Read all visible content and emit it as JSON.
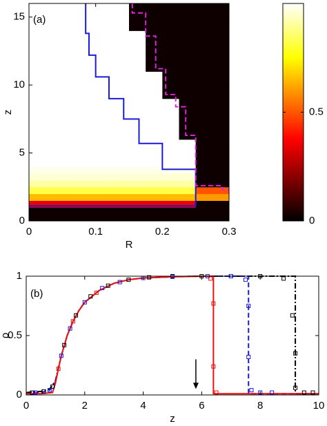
{
  "chart_data": [
    {
      "type": "heatmap",
      "annotation": "(a)",
      "xlabel": "R",
      "ylabel": "z",
      "xlim": [
        0,
        0.3
      ],
      "xticks": [
        0,
        0.1,
        0.2,
        0.3
      ],
      "ylim": [
        0,
        16
      ],
      "yticks": [
        0,
        5,
        10,
        15
      ],
      "x_edges": [
        0,
        0.05,
        0.1,
        0.125,
        0.15,
        0.175,
        0.2,
        0.225,
        0.25,
        0.3
      ],
      "y_edges": [
        0,
        1,
        1.5,
        2,
        2.5,
        3,
        3.5,
        4,
        5,
        6,
        7,
        8,
        9,
        10,
        11,
        12,
        13,
        14,
        15,
        16
      ],
      "colormap": "hot",
      "clim": [
        0,
        1
      ],
      "colorbar_ticks": [
        0,
        0.5
      ],
      "values": [
        [
          0.02,
          0.02,
          0.02,
          0.02,
          0.02,
          0.02,
          0.02,
          0.02,
          0.02
        ],
        [
          0.35,
          0.35,
          0.35,
          0.35,
          0.35,
          0.35,
          0.35,
          0.35,
          0.02
        ],
        [
          0.65,
          0.65,
          0.65,
          0.65,
          0.65,
          0.65,
          0.65,
          0.65,
          0.6
        ],
        [
          0.82,
          0.82,
          0.82,
          0.82,
          0.82,
          0.82,
          0.82,
          0.82,
          0.5
        ],
        [
          0.91,
          0.91,
          0.91,
          0.91,
          0.91,
          0.91,
          0.91,
          0.91,
          0.02
        ],
        [
          0.96,
          0.96,
          0.96,
          0.96,
          0.96,
          0.96,
          0.96,
          0.96,
          0.02
        ],
        [
          0.98,
          0.98,
          0.98,
          0.98,
          0.98,
          0.98,
          0.98,
          0.98,
          0.02
        ],
        [
          1,
          1,
          1,
          1,
          1,
          1,
          1,
          1,
          0.02
        ],
        [
          1,
          1,
          1,
          1,
          1,
          1,
          1,
          1,
          0.02
        ],
        [
          1,
          1,
          1,
          1,
          1,
          1,
          1,
          0.02,
          0.02
        ],
        [
          1,
          1,
          1,
          1,
          1,
          1,
          1,
          0.02,
          0.02
        ],
        [
          1,
          1,
          1,
          1,
          1,
          1,
          1,
          0.02,
          0.02
        ],
        [
          1,
          1,
          1,
          1,
          1,
          1,
          0.02,
          0.02,
          0.02
        ],
        [
          1,
          1,
          1,
          1,
          1,
          1,
          0.02,
          0.02,
          0.02
        ],
        [
          1,
          1,
          1,
          1,
          1,
          0.02,
          0.02,
          0.02,
          0.02
        ],
        [
          1,
          1,
          1,
          1,
          1,
          0.02,
          0.02,
          0.02,
          0.02
        ],
        [
          1,
          1,
          1,
          1,
          1,
          0.02,
          0.02,
          0.02,
          0.02
        ],
        [
          1,
          1,
          1,
          1,
          0.02,
          0.02,
          0.02,
          0.02,
          0.02
        ],
        [
          1,
          1,
          1,
          1,
          0.02,
          0.02,
          0.02,
          0.02,
          0.02
        ]
      ],
      "lines": [
        {
          "color": "#1a1adb",
          "dash": "solid",
          "x": [
            0,
            0.25,
            0.25,
            0.2,
            0.2,
            0.165,
            0.165,
            0.142,
            0.142,
            0.12,
            0.12,
            0.1,
            0.1,
            0.09,
            0.09,
            0.085,
            0.085
          ],
          "y": [
            1.1,
            1.1,
            3.8,
            3.8,
            5.7,
            5.7,
            7.5,
            7.5,
            9.0,
            9.0,
            10.6,
            10.6,
            12.2,
            12.2,
            13.8,
            13.8,
            16
          ]
        },
        {
          "color": "#e020e0",
          "dash": "dashed",
          "x": [
            0.155,
            0.155,
            0.175,
            0.175,
            0.19,
            0.19,
            0.205,
            0.205,
            0.22,
            0.22,
            0.235,
            0.235,
            0.25,
            0.25,
            0.29,
            0.29,
            0.3
          ],
          "y": [
            16,
            15.3,
            15.3,
            13.6,
            13.6,
            11.2,
            11.2,
            9.3,
            9.3,
            8.4,
            8.4,
            6.3,
            6.3,
            2.6,
            2.6,
            2.3,
            2.3
          ]
        }
      ]
    },
    {
      "type": "line",
      "annotation": "(b)",
      "xlabel": "z",
      "ylabel": "ρ",
      "xlim": [
        0,
        10
      ],
      "xticks": [
        0,
        2,
        4,
        6,
        8,
        10
      ],
      "ylim": [
        0,
        1
      ],
      "yticks": [
        0,
        0.5,
        1
      ],
      "arrows": [
        {
          "x": 5.8,
          "y_from": 0.3,
          "y_to": 0.05
        }
      ],
      "series": [
        {
          "color": "#000000",
          "dash": "dashdot",
          "kind": "line",
          "x": [
            0,
            0.5,
            0.8,
            1.0,
            1.1,
            1.2,
            1.4,
            1.6,
            1.8,
            2,
            2.5,
            3,
            3.5,
            4,
            5,
            6,
            7,
            8,
            9.2,
            9.2,
            10
          ],
          "values": [
            0.02,
            0.03,
            0.05,
            0.12,
            0.23,
            0.33,
            0.5,
            0.62,
            0.71,
            0.78,
            0.88,
            0.94,
            0.97,
            0.985,
            0.995,
            1,
            1,
            1,
            1,
            0.01,
            0.01
          ]
        },
        {
          "color": "#1a1adb",
          "dash": "dashed",
          "kind": "line",
          "x": [
            0,
            0.5,
            0.8,
            1.0,
            1.1,
            1.2,
            1.4,
            1.6,
            1.8,
            2,
            2.5,
            3,
            3.5,
            4,
            5,
            6,
            7.6,
            7.6,
            8,
            10
          ],
          "values": [
            0.01,
            0.02,
            0.04,
            0.11,
            0.22,
            0.33,
            0.5,
            0.62,
            0.71,
            0.78,
            0.88,
            0.94,
            0.97,
            0.985,
            0.995,
            1,
            1,
            0.01,
            0.01,
            0.01
          ]
        },
        {
          "color": "#ee1111",
          "dash": "solid",
          "kind": "line",
          "x": [
            0,
            0.5,
            0.9,
            1.0,
            1.1,
            1.2,
            1.4,
            1.6,
            1.8,
            2,
            2.5,
            3,
            3.5,
            4,
            5,
            6,
            6.4,
            6.4,
            7,
            8,
            10
          ],
          "values": [
            0.01,
            0.01,
            0.02,
            0.1,
            0.22,
            0.33,
            0.5,
            0.62,
            0.71,
            0.78,
            0.88,
            0.94,
            0.97,
            0.985,
            0.995,
            1,
            1,
            0.01,
            0.01,
            0.01,
            0.01
          ]
        },
        {
          "color": "#000000",
          "kind": "markers",
          "x": [
            0.2,
            0.6,
            0.9,
            1.3,
            1.7,
            2.2,
            2.8,
            3.5,
            4.2,
            5,
            6,
            7,
            8,
            8.8,
            9.1,
            9.2,
            9.2,
            9.5,
            9.8
          ],
          "values": [
            0.02,
            0.03,
            0.07,
            0.42,
            0.67,
            0.83,
            0.92,
            0.97,
            0.99,
            1,
            1,
            1,
            1,
            0.98,
            0.67,
            0.35,
            0.06,
            0.02,
            0.02
          ]
        },
        {
          "color": "#1a1adb",
          "kind": "markers",
          "x": [
            0.3,
            0.8,
            1.2,
            1.5,
            2,
            2.6,
            3.2,
            4,
            5,
            6.2,
            7,
            7.5,
            7.6,
            7.6,
            7.7,
            8,
            8.4
          ],
          "values": [
            0.02,
            0.04,
            0.33,
            0.56,
            0.78,
            0.9,
            0.95,
            0.985,
            0.995,
            1,
            1,
            0.97,
            0.75,
            0.32,
            0.04,
            0.02,
            0.02
          ]
        },
        {
          "color": "#ee1111",
          "kind": "markers",
          "x": [
            1.1,
            1.6,
            2.4,
            6.3,
            6.4,
            6.4,
            6.5
          ],
          "values": [
            0.22,
            0.62,
            0.86,
            0.98,
            0.77,
            0.24,
            0.02
          ]
        }
      ]
    }
  ]
}
